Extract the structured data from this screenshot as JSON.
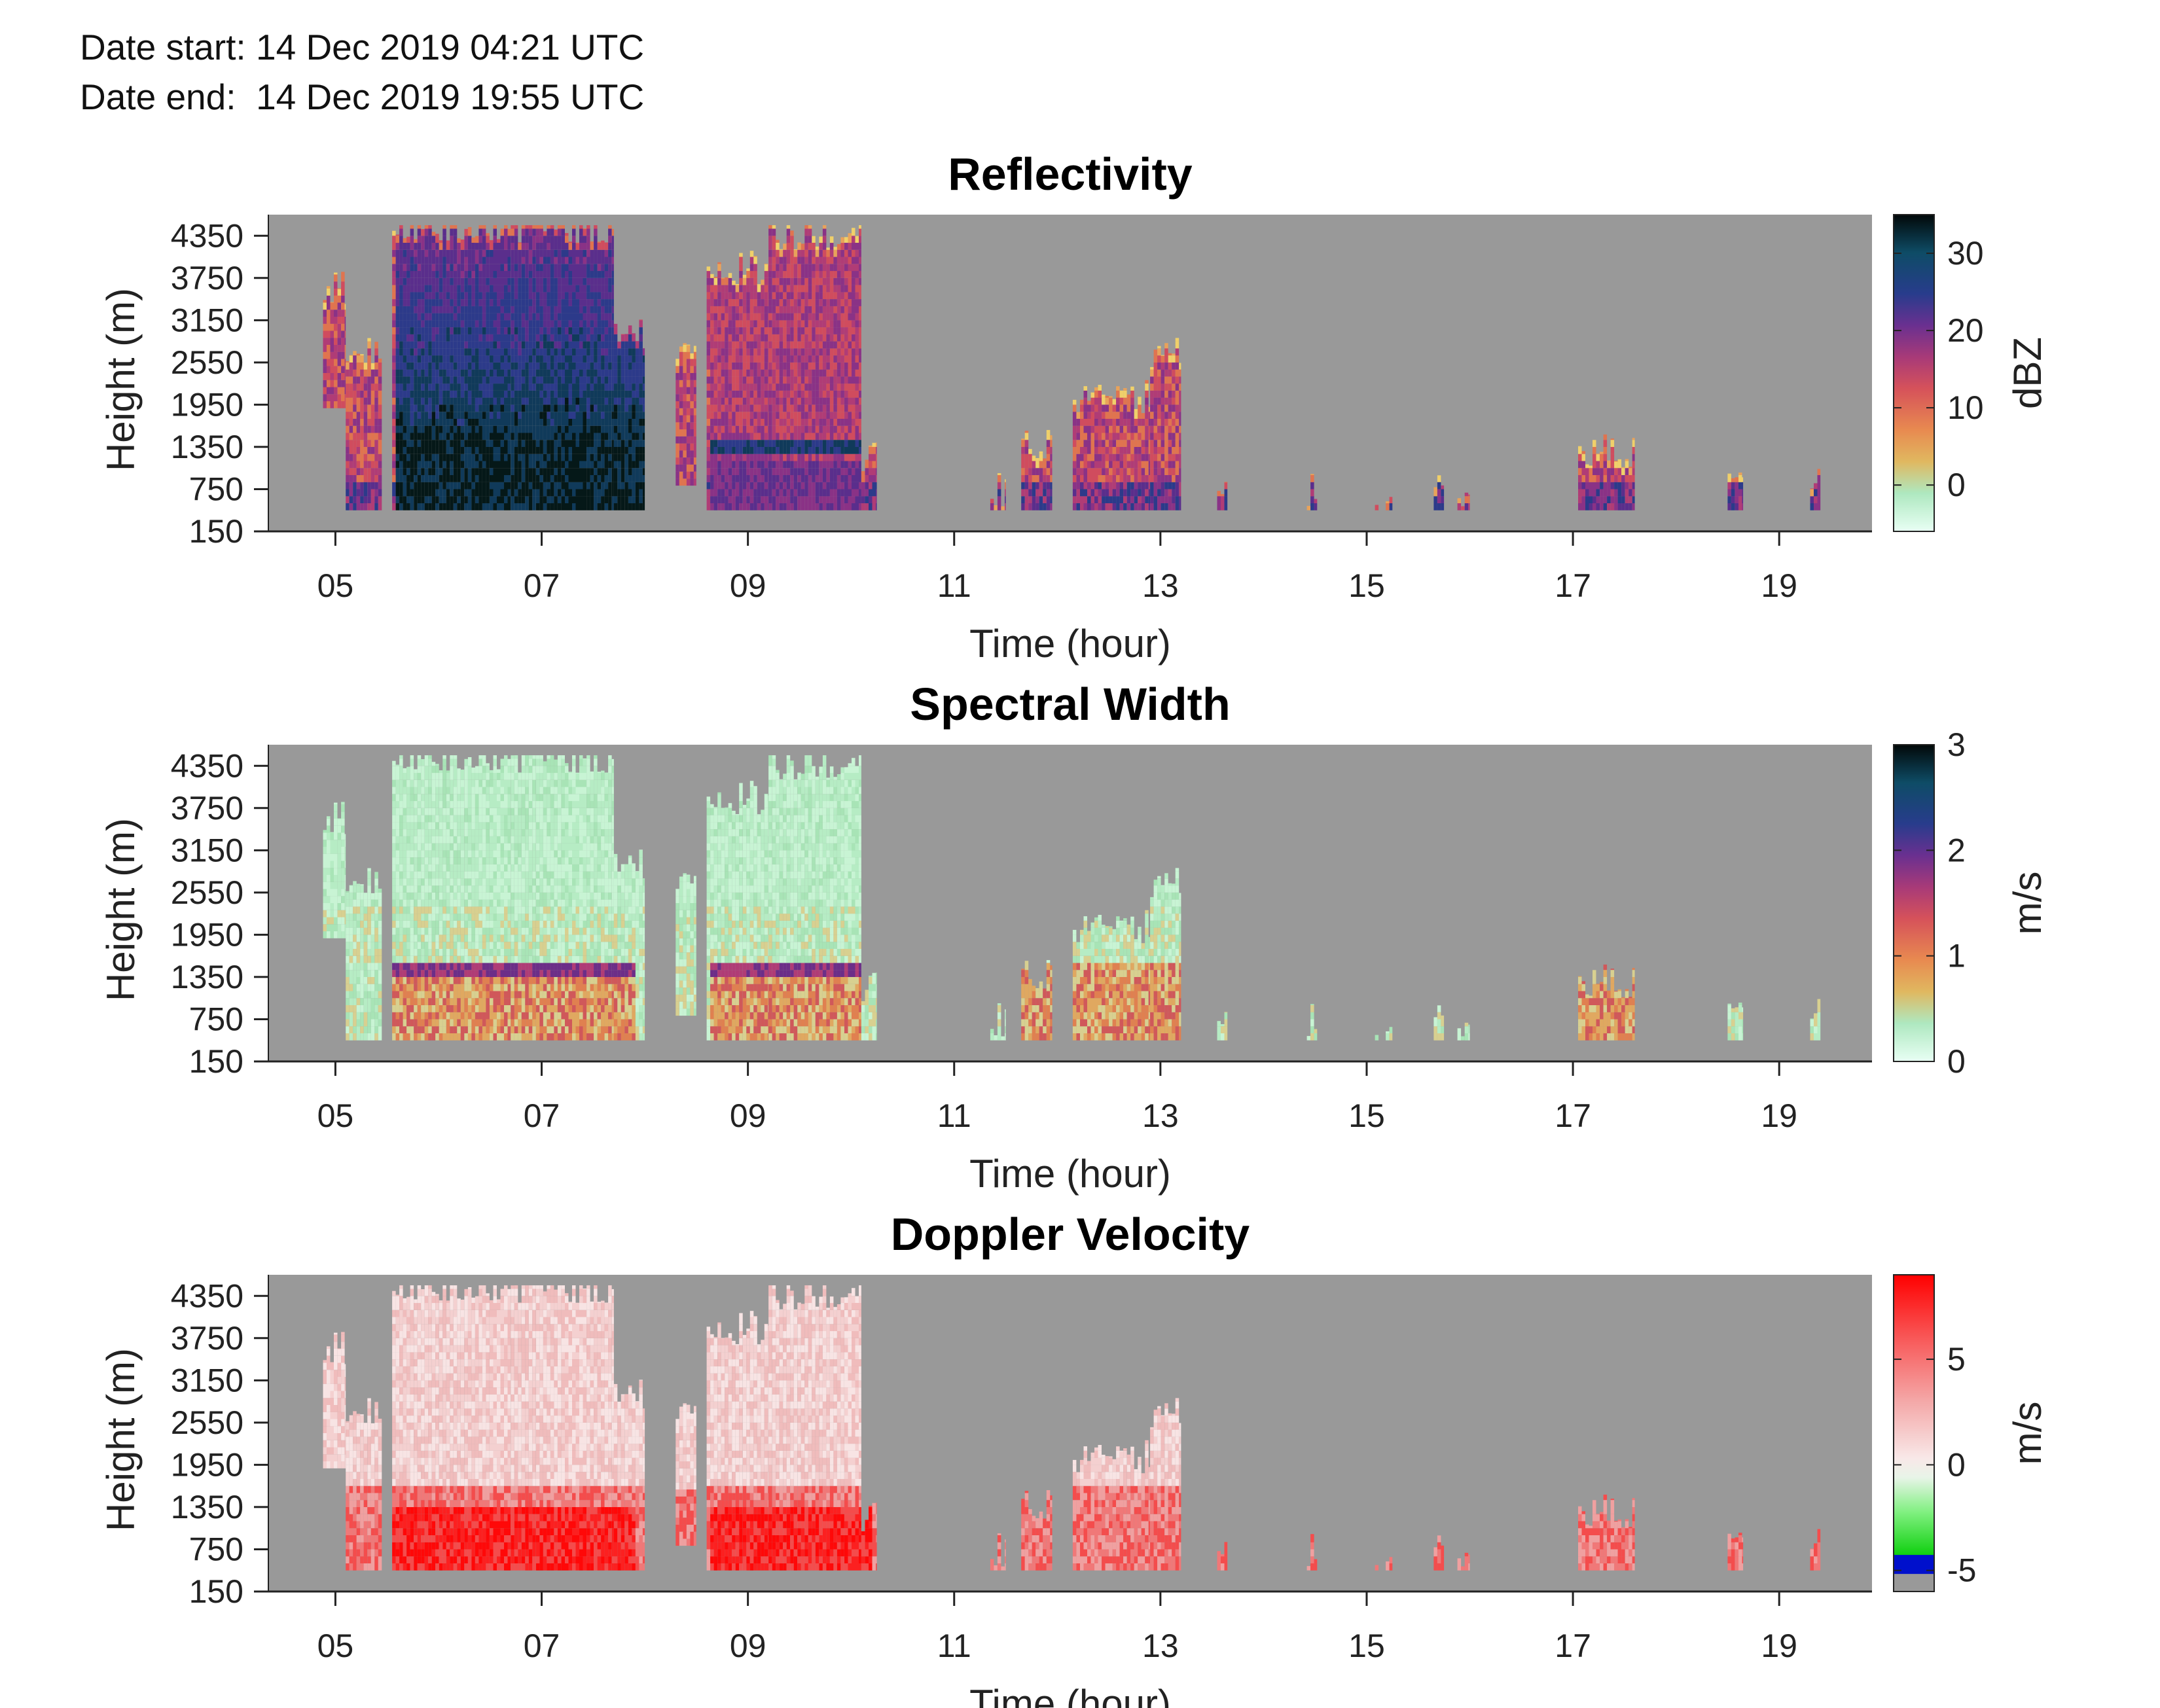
{
  "header": {
    "date_start": "Date start: 14 Dec 2019 04:21 UTC",
    "date_end": "Date end:  14 Dec 2019 19:55 UTC"
  },
  "chart_data": [
    {
      "type": "heatmap",
      "title": "Reflectivity",
      "xlabel": "Time (hour)",
      "ylabel": "Height (m)",
      "x_ticks": [
        "05",
        "07",
        "09",
        "11",
        "13",
        "15",
        "17",
        "19"
      ],
      "x_tick_values": [
        5,
        7,
        9,
        11,
        13,
        15,
        17,
        19
      ],
      "xlim": [
        4.35,
        19.9
      ],
      "y_ticks": [
        "150",
        "750",
        "1350",
        "1950",
        "2550",
        "3150",
        "3750",
        "4350"
      ],
      "y_tick_values": [
        150,
        750,
        1350,
        1950,
        2550,
        3150,
        3750,
        4350
      ],
      "ylim": [
        150,
        4650
      ],
      "colorbar": {
        "label": "dBZ",
        "ticks": [
          "0",
          "10",
          "20",
          "30"
        ],
        "tick_values": [
          0,
          10,
          20,
          30
        ],
        "range": [
          -6,
          35
        ]
      },
      "background_color": "#999999",
      "echo_segments": [
        {
          "t0": 4.88,
          "t1": 5.1,
          "h0": 1900,
          "h1": 3600
        },
        {
          "t0": 5.1,
          "t1": 5.45,
          "h0": 450,
          "h1": 2700
        },
        {
          "t0": 5.55,
          "t1": 6.7,
          "h0": 450,
          "h1": 4500
        },
        {
          "t0": 6.7,
          "t1": 7.7,
          "h0": 450,
          "h1": 4500
        },
        {
          "t0": 7.7,
          "t1": 8.0,
          "h0": 450,
          "h1": 3000
        },
        {
          "t0": 8.3,
          "t1": 8.5,
          "h0": 800,
          "h1": 2600
        },
        {
          "t0": 8.6,
          "t1": 9.2,
          "h0": 450,
          "h1": 3900
        },
        {
          "t0": 9.2,
          "t1": 10.1,
          "h0": 450,
          "h1": 4400
        },
        {
          "t0": 10.1,
          "t1": 10.25,
          "h0": 450,
          "h1": 1200
        },
        {
          "t0": 11.35,
          "t1": 11.5,
          "h0": 450,
          "h1": 750
        },
        {
          "t0": 11.65,
          "t1": 11.95,
          "h0": 450,
          "h1": 1400
        },
        {
          "t0": 12.15,
          "t1": 12.9,
          "h0": 450,
          "h1": 2050
        },
        {
          "t0": 12.9,
          "t1": 13.2,
          "h0": 450,
          "h1": 2650
        },
        {
          "t0": 13.55,
          "t1": 13.65,
          "h0": 450,
          "h1": 650
        },
        {
          "t0": 14.42,
          "t1": 14.52,
          "h0": 450,
          "h1": 750
        },
        {
          "t0": 15.08,
          "t1": 15.25,
          "h0": 450,
          "h1": 600
        },
        {
          "t0": 15.65,
          "t1": 15.75,
          "h0": 450,
          "h1": 700
        },
        {
          "t0": 15.88,
          "t1": 16.0,
          "h0": 450,
          "h1": 700
        },
        {
          "t0": 17.05,
          "t1": 17.6,
          "h0": 450,
          "h1": 1300
        },
        {
          "t0": 18.5,
          "t1": 18.65,
          "h0": 450,
          "h1": 1050
        },
        {
          "t0": 19.3,
          "t1": 19.4,
          "h0": 450,
          "h1": 850
        }
      ]
    },
    {
      "type": "heatmap",
      "title": "Spectral Width",
      "xlabel": "Time (hour)",
      "ylabel": "Height (m)",
      "x_ticks": [
        "05",
        "07",
        "09",
        "11",
        "13",
        "15",
        "17",
        "19"
      ],
      "x_tick_values": [
        5,
        7,
        9,
        11,
        13,
        15,
        17,
        19
      ],
      "xlim": [
        4.35,
        19.9
      ],
      "y_ticks": [
        "150",
        "750",
        "1350",
        "1950",
        "2550",
        "3150",
        "3750",
        "4350"
      ],
      "y_tick_values": [
        150,
        750,
        1350,
        1950,
        2550,
        3150,
        3750,
        4350
      ],
      "ylim": [
        150,
        4650
      ],
      "colorbar": {
        "label": "m/s",
        "ticks": [
          "0",
          "1",
          "2",
          "3"
        ],
        "tick_values": [
          0,
          1,
          2,
          3
        ],
        "range": [
          0,
          3
        ]
      },
      "background_color": "#999999"
    },
    {
      "type": "heatmap",
      "title": "Doppler Velocity",
      "xlabel": "Time (hour)",
      "ylabel": "Height (m)",
      "x_ticks": [
        "05",
        "07",
        "09",
        "11",
        "13",
        "15",
        "17",
        "19"
      ],
      "x_tick_values": [
        5,
        7,
        9,
        11,
        13,
        15,
        17,
        19
      ],
      "xlim": [
        4.35,
        19.9
      ],
      "y_ticks": [
        "150",
        "750",
        "1350",
        "1950",
        "2550",
        "3150",
        "3750",
        "4350"
      ],
      "y_tick_values": [
        150,
        750,
        1350,
        1950,
        2550,
        3150,
        3750,
        4350
      ],
      "ylim": [
        150,
        4650
      ],
      "colorbar": {
        "label": "m/s",
        "ticks": [
          "-5",
          "0",
          "5"
        ],
        "tick_values": [
          -5,
          0,
          5
        ],
        "range": [
          -6,
          9
        ]
      },
      "background_color": "#999999"
    }
  ]
}
